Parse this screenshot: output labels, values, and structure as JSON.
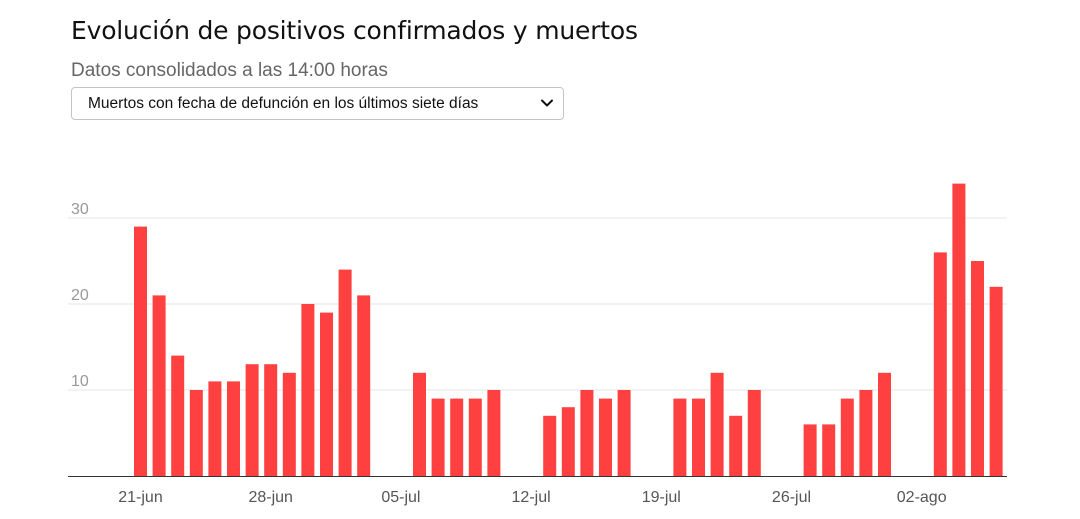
{
  "title": "Evolución de positivos confirmados y muertos",
  "subtitle": "Datos consolidados a las 14:00 horas",
  "selector": {
    "selected": "Muertos con fecha de defunción en los últimos siete días"
  },
  "icons": {
    "dropdown": "chevron-down-icon"
  },
  "colors": {
    "bar": "#ff4040",
    "grid": "#e6e6e6",
    "axis": "#333333"
  },
  "chart_data": {
    "type": "bar",
    "title": "",
    "xlabel": "",
    "ylabel": "",
    "ylim": [
      0,
      35
    ],
    "yticks": [
      10,
      20,
      30
    ],
    "x_tick_labels": [
      {
        "label": "21-jun",
        "index": 0
      },
      {
        "label": "28-jun",
        "index": 7
      },
      {
        "label": "05-jul",
        "index": 14
      },
      {
        "label": "12-jul",
        "index": 21
      },
      {
        "label": "19-jul",
        "index": 28
      },
      {
        "label": "26-jul",
        "index": 35
      },
      {
        "label": "02-ago",
        "index": 42
      }
    ],
    "categories": [
      "21-jun",
      "22-jun",
      "23-jun",
      "24-jun",
      "25-jun",
      "26-jun",
      "27-jun",
      "28-jun",
      "29-jun",
      "30-jun",
      "01-jul",
      "02-jul",
      "03-jul",
      "04-jul",
      "05-jul",
      "06-jul",
      "07-jul",
      "08-jul",
      "09-jul",
      "10-jul",
      "11-jul",
      "12-jul",
      "13-jul",
      "14-jul",
      "15-jul",
      "16-jul",
      "17-jul",
      "18-jul",
      "19-jul",
      "20-jul",
      "21-jul",
      "22-jul",
      "23-jul",
      "24-jul",
      "25-jul",
      "26-jul",
      "27-jul",
      "28-jul",
      "29-jul",
      "30-jul",
      "31-jul",
      "01-ago",
      "02-ago",
      "03-ago",
      "04-ago",
      "05-ago",
      "06-ago"
    ],
    "values": [
      29,
      21,
      14,
      10,
      11,
      11,
      13,
      13,
      12,
      20,
      19,
      24,
      21,
      0,
      0,
      12,
      9,
      9,
      9,
      10,
      0,
      0,
      7,
      8,
      10,
      9,
      10,
      0,
      0,
      9,
      9,
      12,
      7,
      10,
      0,
      0,
      6,
      6,
      9,
      10,
      12,
      0,
      0,
      26,
      34,
      25,
      22
    ]
  }
}
